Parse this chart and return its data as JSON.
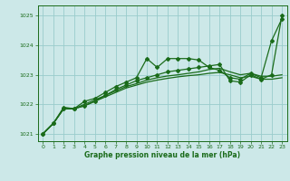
{
  "background_color": "#cce8e8",
  "grid_color": "#99cccc",
  "line_color": "#1a6b1a",
  "xlabel": "Graphe pression niveau de la mer (hPa)",
  "xlim": [
    -0.5,
    23.5
  ],
  "ylim": [
    1020.75,
    1025.35
  ],
  "yticks": [
    1021,
    1022,
    1023,
    1024,
    1025
  ],
  "xticks": [
    0,
    1,
    2,
    3,
    4,
    5,
    6,
    7,
    8,
    9,
    10,
    11,
    12,
    13,
    14,
    15,
    16,
    17,
    18,
    19,
    20,
    21,
    22,
    23
  ],
  "lines": [
    {
      "x": [
        0,
        1,
        2,
        3,
        4,
        5,
        6,
        7,
        8,
        9,
        10,
        11,
        12,
        13,
        14,
        15,
        16,
        17,
        18,
        19,
        20,
        21,
        22,
        23
      ],
      "y": [
        1021.0,
        1021.35,
        1021.85,
        1021.85,
        1021.95,
        1022.1,
        1022.25,
        1022.4,
        1022.55,
        1022.65,
        1022.75,
        1022.82,
        1022.88,
        1022.93,
        1022.97,
        1023.0,
        1023.05,
        1023.08,
        1023.0,
        1022.9,
        1022.95,
        1022.85,
        1022.85,
        1022.9
      ],
      "marker": false,
      "lw": 0.9
    },
    {
      "x": [
        0,
        1,
        2,
        3,
        4,
        5,
        6,
        7,
        8,
        9,
        10,
        11,
        12,
        13,
        14,
        15,
        16,
        17,
        18,
        19,
        20,
        21,
        22,
        23
      ],
      "y": [
        1021.0,
        1021.35,
        1021.85,
        1021.85,
        1022.0,
        1022.15,
        1022.3,
        1022.45,
        1022.6,
        1022.7,
        1022.82,
        1022.9,
        1022.96,
        1023.0,
        1023.05,
        1023.1,
        1023.18,
        1023.22,
        1023.1,
        1023.0,
        1023.05,
        1022.95,
        1022.95,
        1023.0
      ],
      "marker": false,
      "lw": 0.9
    },
    {
      "x": [
        0,
        1,
        2,
        3,
        4,
        5,
        6,
        7,
        8,
        9,
        10,
        11,
        12,
        13,
        14,
        15,
        16,
        17,
        18,
        19,
        20,
        21,
        22,
        23
      ],
      "y": [
        1021.0,
        1021.35,
        1021.85,
        1021.85,
        1022.1,
        1022.2,
        1022.4,
        1022.6,
        1022.75,
        1022.9,
        1023.55,
        1023.25,
        1023.55,
        1023.55,
        1023.55,
        1023.5,
        1023.25,
        1023.15,
        1022.9,
        1022.85,
        1023.05,
        1022.9,
        1024.15,
        1024.9
      ],
      "marker": true,
      "lw": 0.9
    },
    {
      "x": [
        0,
        1,
        2,
        3,
        4,
        5,
        6,
        7,
        8,
        9,
        10,
        11,
        12,
        13,
        14,
        15,
        16,
        17,
        18,
        19,
        20,
        21,
        22,
        23
      ],
      "y": [
        1021.0,
        1021.35,
        1021.9,
        1021.85,
        1021.95,
        1022.1,
        1022.3,
        1022.5,
        1022.65,
        1022.8,
        1022.9,
        1023.0,
        1023.1,
        1023.15,
        1023.2,
        1023.25,
        1023.3,
        1023.35,
        1022.8,
        1022.75,
        1023.0,
        1022.85,
        1023.0,
        1025.0
      ],
      "marker": true,
      "lw": 0.9
    }
  ]
}
